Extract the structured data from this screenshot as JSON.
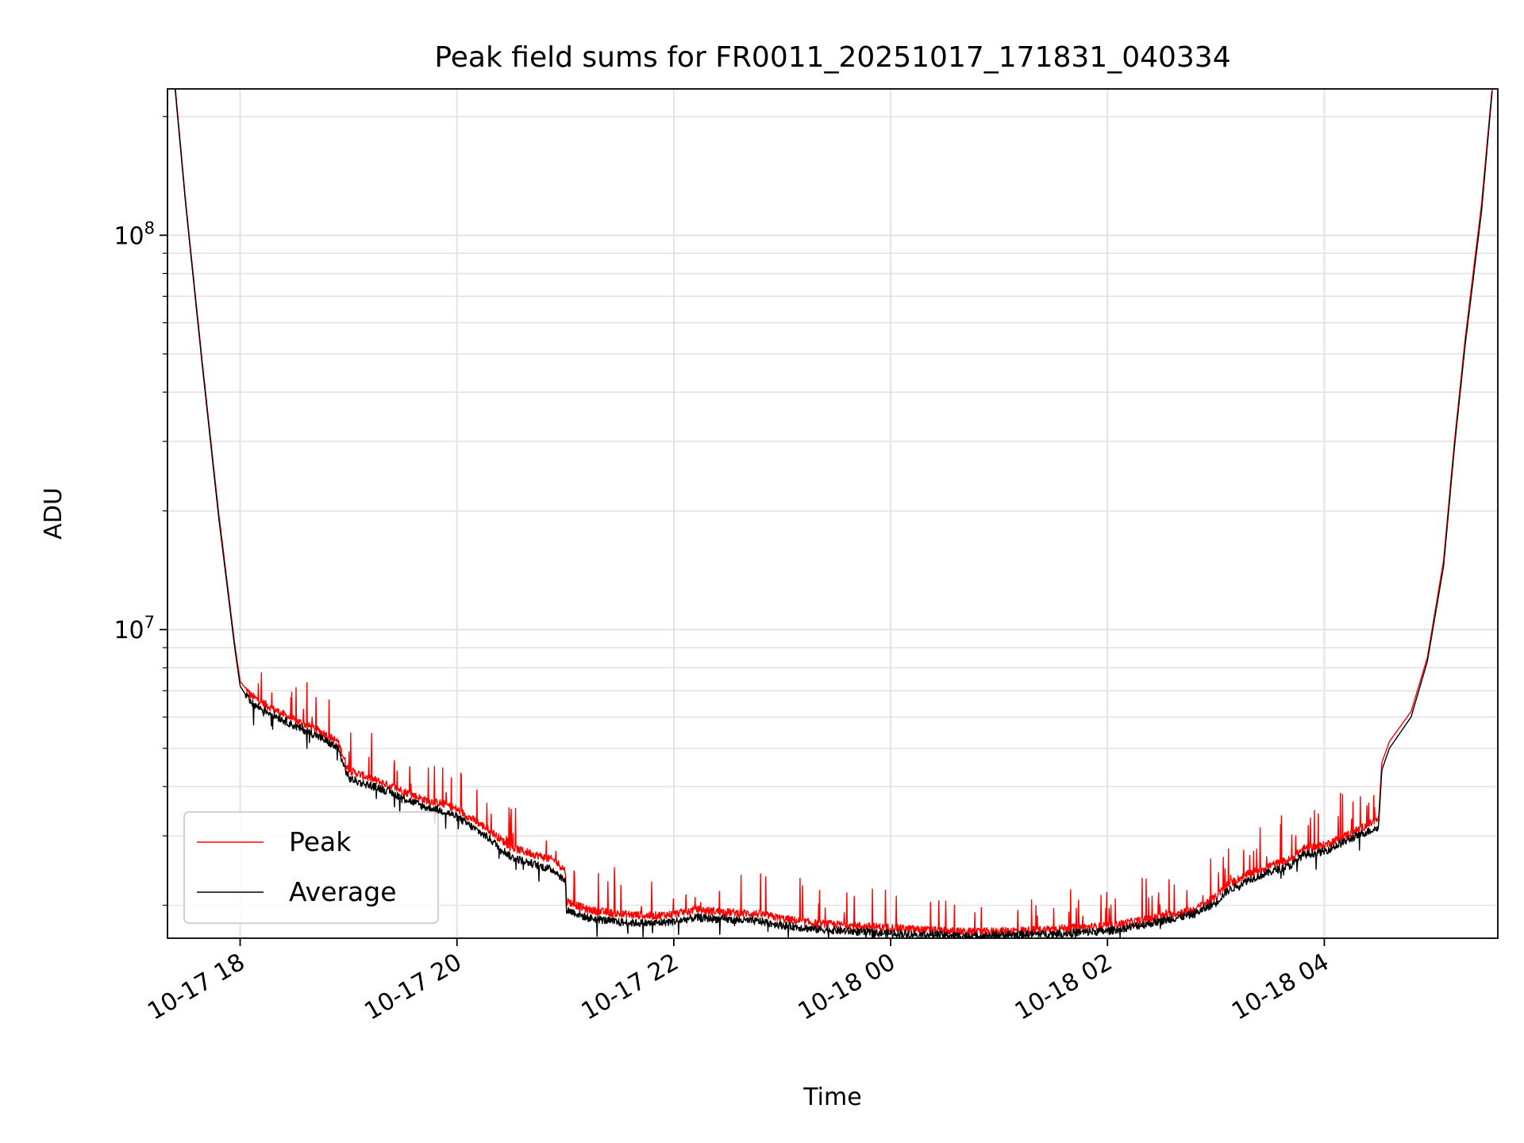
{
  "chart_data": {
    "type": "line",
    "title": "Peak field sums for FR0011_20251017_171831_040334",
    "xlabel": "Time",
    "ylabel": "ADU",
    "yscale": "log",
    "ylim": [
      1650000,
      235000000
    ],
    "xlim_hours": [
      -0.67,
      11.6
    ],
    "grid": true,
    "legend_position": "lower-left",
    "x_ticks": [
      {
        "hour": 0,
        "label": "10-17 18"
      },
      {
        "hour": 2,
        "label": "10-17 20"
      },
      {
        "hour": 4,
        "label": "10-17 22"
      },
      {
        "hour": 6,
        "label": "10-18 00"
      },
      {
        "hour": 8,
        "label": "10-18 02"
      },
      {
        "hour": 10,
        "label": "10-18 04"
      }
    ],
    "y_ticks": [
      {
        "value": 10000000,
        "base": "10",
        "exp": "7"
      },
      {
        "value": 100000000,
        "base": "10",
        "exp": "8"
      }
    ],
    "x_unit_note": "hours relative to 10-17 18:00",
    "series": [
      {
        "name": "Peak",
        "color": "#ff0000",
        "x": [
          -0.6,
          -0.5,
          -0.35,
          -0.2,
          -0.05,
          0.0,
          0.1,
          0.3,
          0.5,
          0.7,
          0.9,
          1.0,
          1.1,
          1.3,
          1.5,
          1.7,
          1.9,
          2.0,
          2.3,
          2.5,
          2.9,
          3.0,
          3.01,
          3.2,
          3.5,
          3.8,
          4.0,
          4.2,
          4.5,
          4.8,
          5.0,
          5.3,
          5.6,
          5.9,
          6.2,
          6.5,
          6.8,
          7.0,
          7.3,
          7.6,
          8.0,
          8.4,
          8.8,
          9.0,
          9.1,
          9.3,
          9.5,
          9.7,
          9.8,
          10.0,
          10.3,
          10.5,
          10.53,
          10.6,
          10.8,
          10.95,
          11.1,
          11.2,
          11.3,
          11.45,
          11.55
        ],
        "values": [
          240000000,
          120000000,
          48000000,
          20000000,
          9200000,
          7400000,
          6800000,
          6300000,
          5900000,
          5600000,
          5200000,
          4400000,
          4300000,
          4100000,
          3900000,
          3700000,
          3600000,
          3500000,
          3100000,
          2800000,
          2600000,
          2450000,
          2050000,
          1950000,
          1900000,
          1880000,
          1900000,
          1950000,
          1920000,
          1900000,
          1850000,
          1800000,
          1780000,
          1760000,
          1740000,
          1720000,
          1710000,
          1720000,
          1730000,
          1750000,
          1770000,
          1850000,
          1950000,
          2100000,
          2250000,
          2400000,
          2520000,
          2620000,
          2780000,
          2840000,
          3100000,
          3300000,
          4600000,
          5200000,
          6200000,
          8500000,
          15000000,
          30000000,
          55000000,
          120000000,
          240000000
        ]
      },
      {
        "name": "Average",
        "color": "#000000",
        "x": [
          -0.6,
          -0.5,
          -0.35,
          -0.2,
          -0.05,
          0.0,
          0.1,
          0.3,
          0.5,
          0.7,
          0.9,
          1.0,
          1.1,
          1.3,
          1.5,
          1.7,
          1.9,
          2.0,
          2.3,
          2.5,
          2.9,
          3.0,
          3.01,
          3.2,
          3.5,
          3.8,
          4.0,
          4.2,
          4.5,
          4.8,
          5.0,
          5.3,
          5.6,
          5.9,
          6.2,
          6.5,
          6.8,
          7.0,
          7.3,
          7.6,
          8.0,
          8.4,
          8.8,
          9.0,
          9.1,
          9.3,
          9.5,
          9.7,
          9.8,
          10.0,
          10.3,
          10.5,
          10.53,
          10.6,
          10.8,
          10.95,
          11.1,
          11.2,
          11.3,
          11.45,
          11.55
        ],
        "values": [
          235000000,
          118000000,
          47000000,
          19500000,
          9000000,
          7200000,
          6500000,
          6100000,
          5700000,
          5400000,
          5000000,
          4200000,
          4100000,
          3950000,
          3750000,
          3550000,
          3450000,
          3350000,
          2950000,
          2650000,
          2450000,
          2300000,
          1950000,
          1860000,
          1810000,
          1800000,
          1820000,
          1860000,
          1840000,
          1820000,
          1780000,
          1740000,
          1720000,
          1700000,
          1690000,
          1680000,
          1670000,
          1680000,
          1690000,
          1700000,
          1720000,
          1800000,
          1900000,
          2030000,
          2170000,
          2320000,
          2430000,
          2530000,
          2680000,
          2740000,
          3000000,
          3150000,
          4400000,
          5000000,
          6000000,
          8300000,
          14500000,
          29000000,
          53000000,
          115000000,
          235000000
        ]
      }
    ]
  }
}
